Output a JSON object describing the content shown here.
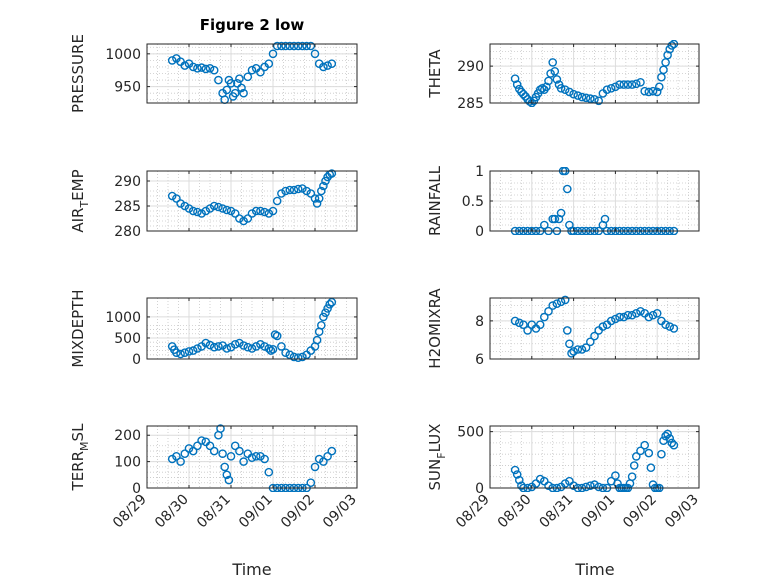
{
  "figure": {
    "title": "Figure 2 low",
    "xlabel": "Time",
    "marker_color": "#0072BD"
  },
  "chart_data": [
    {
      "type": "scatter",
      "ylabel": "PRESSURE",
      "ylabel_sub": "",
      "ylabel_tail": "",
      "ylim": [
        925,
        1015
      ],
      "yticks": [
        950,
        1000
      ],
      "xlim": [
        0,
        5
      ],
      "xticks": [
        0,
        1,
        2,
        3,
        4,
        5
      ],
      "xticklabels": [
        "08/29",
        "08/30",
        "08/31",
        "09/01",
        "09/02",
        "09/03"
      ],
      "show_xticklabels": false,
      "x": [
        0.6,
        0.7,
        0.8,
        0.9,
        1.0,
        1.1,
        1.2,
        1.3,
        1.4,
        1.5,
        1.6,
        1.7,
        1.8,
        1.85,
        1.9,
        1.95,
        2.0,
        2.05,
        2.1,
        2.15,
        2.2,
        2.25,
        2.3,
        2.4,
        2.5,
        2.6,
        2.7,
        2.8,
        2.9,
        3.0,
        3.1,
        3.2,
        3.3,
        3.4,
        3.5,
        3.6,
        3.7,
        3.8,
        3.9,
        4.0,
        4.1,
        4.2,
        4.3,
        4.4
      ],
      "y": [
        990,
        993,
        988,
        982,
        985,
        980,
        978,
        979,
        977,
        978,
        975,
        960,
        940,
        930,
        945,
        960,
        955,
        935,
        940,
        955,
        962,
        948,
        940,
        965,
        975,
        978,
        972,
        980,
        985,
        1000,
        1012,
        1012,
        1012,
        1012,
        1012,
        1012,
        1012,
        1012,
        1012,
        1000,
        985,
        980,
        982,
        985
      ]
    },
    {
      "type": "scatter",
      "ylabel": "THETA",
      "ylabel_sub": "",
      "ylabel_tail": "",
      "ylim": [
        285,
        293
      ],
      "yticks": [
        285,
        290
      ],
      "xlim": [
        0,
        5
      ],
      "xticks": [
        0,
        1,
        2,
        3,
        4,
        5
      ],
      "xticklabels": [
        "08/29",
        "08/30",
        "08/31",
        "09/01",
        "09/02",
        "09/03"
      ],
      "show_xticklabels": false,
      "x": [
        0.6,
        0.65,
        0.7,
        0.75,
        0.8,
        0.85,
        0.9,
        0.95,
        1.0,
        1.05,
        1.1,
        1.15,
        1.2,
        1.25,
        1.3,
        1.35,
        1.4,
        1.45,
        1.5,
        1.55,
        1.6,
        1.65,
        1.7,
        1.8,
        1.9,
        2.0,
        2.1,
        2.2,
        2.3,
        2.4,
        2.5,
        2.6,
        2.7,
        2.8,
        2.9,
        3.0,
        3.1,
        3.2,
        3.3,
        3.4,
        3.5,
        3.6,
        3.7,
        3.8,
        3.9,
        4.0,
        4.05,
        4.1,
        4.15,
        4.2,
        4.25,
        4.3,
        4.35,
        4.4
      ],
      "y": [
        288.3,
        287.5,
        286.9,
        286.5,
        286.2,
        285.9,
        285.5,
        285.2,
        285.0,
        285.3,
        285.8,
        286.3,
        286.8,
        287.0,
        286.8,
        287.2,
        288.0,
        289.0,
        290.5,
        289.3,
        288.2,
        287.5,
        287.0,
        286.8,
        286.5,
        286.2,
        286.0,
        285.8,
        285.7,
        285.6,
        285.5,
        285.3,
        286.3,
        286.8,
        287.0,
        287.2,
        287.5,
        287.5,
        287.5,
        287.5,
        287.6,
        287.8,
        286.6,
        286.5,
        286.6,
        286.5,
        287.2,
        288.5,
        289.5,
        290.5,
        291.5,
        292.3,
        292.8,
        293.0
      ]
    },
    {
      "type": "scatter",
      "ylabel": "AIR",
      "ylabel_sub": "T",
      "ylabel_tail": "EMP",
      "ylim": [
        280,
        292
      ],
      "yticks": [
        280,
        285,
        290
      ],
      "xlim": [
        0,
        5
      ],
      "xticks": [
        0,
        1,
        2,
        3,
        4,
        5
      ],
      "xticklabels": [
        "08/29",
        "08/30",
        "08/31",
        "09/01",
        "09/02",
        "09/03"
      ],
      "show_xticklabels": false,
      "x": [
        0.6,
        0.7,
        0.8,
        0.9,
        1.0,
        1.1,
        1.2,
        1.3,
        1.4,
        1.5,
        1.6,
        1.7,
        1.8,
        1.9,
        2.0,
        2.1,
        2.2,
        2.3,
        2.4,
        2.5,
        2.6,
        2.7,
        2.8,
        2.9,
        3.0,
        3.1,
        3.2,
        3.3,
        3.4,
        3.5,
        3.6,
        3.7,
        3.8,
        3.9,
        4.0,
        4.05,
        4.1,
        4.15,
        4.2,
        4.25,
        4.3,
        4.35,
        4.4
      ],
      "y": [
        287.0,
        286.5,
        285.5,
        285.0,
        284.5,
        284.0,
        283.8,
        283.5,
        284.0,
        284.5,
        285.0,
        284.8,
        284.5,
        284.2,
        284.0,
        283.5,
        282.5,
        282.0,
        282.5,
        283.5,
        284.0,
        284.0,
        283.8,
        283.5,
        284.0,
        286.0,
        287.5,
        288.0,
        288.2,
        288.2,
        288.4,
        288.5,
        288.0,
        287.5,
        286.5,
        285.5,
        286.5,
        288.0,
        289.0,
        290.0,
        290.8,
        291.3,
        291.5
      ]
    },
    {
      "type": "scatter",
      "ylabel": "RAINFALL",
      "ylabel_sub": "",
      "ylabel_tail": "",
      "ylim": [
        0,
        1
      ],
      "yticks": [
        0,
        0.5,
        1
      ],
      "xlim": [
        0,
        5
      ],
      "xticks": [
        0,
        1,
        2,
        3,
        4,
        5
      ],
      "xticklabels": [
        "08/29",
        "08/30",
        "08/31",
        "09/01",
        "09/02",
        "09/03"
      ],
      "show_xticklabels": false,
      "x": [
        0.6,
        0.7,
        0.8,
        0.9,
        1.0,
        1.1,
        1.2,
        1.3,
        1.4,
        1.5,
        1.55,
        1.6,
        1.65,
        1.7,
        1.75,
        1.8,
        1.85,
        1.9,
        1.95,
        2.0,
        2.1,
        2.2,
        2.3,
        2.4,
        2.5,
        2.6,
        2.7,
        2.75,
        2.8,
        2.9,
        3.0,
        3.1,
        3.2,
        3.3,
        3.4,
        3.5,
        3.6,
        3.7,
        3.8,
        3.9,
        4.0,
        4.1,
        4.2,
        4.3,
        4.4
      ],
      "y": [
        0,
        0,
        0,
        0,
        0,
        0,
        0,
        0.1,
        0,
        0.2,
        0.2,
        0,
        0.2,
        0.3,
        1.0,
        1.0,
        0.7,
        0.1,
        0,
        0,
        0,
        0,
        0,
        0,
        0,
        0,
        0.1,
        0.2,
        0,
        0,
        0,
        0,
        0,
        0,
        0,
        0,
        0,
        0,
        0,
        0,
        0,
        0,
        0,
        0,
        0
      ]
    },
    {
      "type": "scatter",
      "ylabel": "MIXDEPTH",
      "ylabel_sub": "",
      "ylabel_tail": "",
      "ylim": [
        0,
        1450
      ],
      "yticks": [
        0,
        500,
        1000
      ],
      "xlim": [
        0,
        5
      ],
      "xticks": [
        0,
        1,
        2,
        3,
        4,
        5
      ],
      "xticklabels": [
        "08/29",
        "08/30",
        "08/31",
        "09/01",
        "09/02",
        "09/03"
      ],
      "show_xticklabels": false,
      "x": [
        0.6,
        0.65,
        0.7,
        0.8,
        0.9,
        1.0,
        1.1,
        1.2,
        1.3,
        1.4,
        1.5,
        1.6,
        1.7,
        1.8,
        1.9,
        2.0,
        2.1,
        2.2,
        2.3,
        2.4,
        2.5,
        2.6,
        2.7,
        2.8,
        2.9,
        2.95,
        3.0,
        3.05,
        3.1,
        3.2,
        3.3,
        3.4,
        3.5,
        3.6,
        3.7,
        3.8,
        3.9,
        4.0,
        4.05,
        4.1,
        4.15,
        4.2,
        4.25,
        4.3,
        4.35,
        4.4
      ],
      "y": [
        300,
        220,
        150,
        120,
        150,
        180,
        200,
        250,
        300,
        380,
        330,
        280,
        300,
        320,
        250,
        280,
        350,
        380,
        320,
        280,
        250,
        300,
        350,
        300,
        250,
        200,
        230,
        580,
        550,
        300,
        150,
        100,
        50,
        30,
        50,
        100,
        200,
        300,
        450,
        650,
        800,
        1000,
        1100,
        1200,
        1300,
        1350
      ]
    },
    {
      "type": "scatter",
      "ylabel": "H2OMIXRA",
      "ylabel_sub": "",
      "ylabel_tail": "",
      "ylim": [
        6,
        9.2
      ],
      "yticks": [
        6,
        8
      ],
      "xlim": [
        0,
        5
      ],
      "xticks": [
        0,
        1,
        2,
        3,
        4,
        5
      ],
      "xticklabels": [
        "08/29",
        "08/30",
        "08/31",
        "09/01",
        "09/02",
        "09/03"
      ],
      "show_xticklabels": false,
      "x": [
        0.6,
        0.7,
        0.8,
        0.9,
        1.0,
        1.1,
        1.2,
        1.3,
        1.4,
        1.5,
        1.6,
        1.7,
        1.8,
        1.85,
        1.9,
        1.95,
        2.0,
        2.1,
        2.2,
        2.3,
        2.4,
        2.5,
        2.6,
        2.7,
        2.8,
        2.9,
        3.0,
        3.1,
        3.2,
        3.3,
        3.4,
        3.5,
        3.6,
        3.7,
        3.8,
        3.9,
        4.0,
        4.1,
        4.2,
        4.3,
        4.4
      ],
      "y": [
        8.0,
        7.9,
        7.8,
        7.5,
        7.8,
        7.6,
        7.8,
        8.2,
        8.5,
        8.8,
        8.9,
        9.0,
        9.1,
        7.5,
        6.8,
        6.3,
        6.4,
        6.5,
        6.5,
        6.6,
        6.9,
        7.2,
        7.5,
        7.7,
        7.8,
        8.0,
        8.1,
        8.2,
        8.2,
        8.3,
        8.3,
        8.4,
        8.5,
        8.4,
        8.2,
        8.3,
        8.4,
        8.0,
        7.8,
        7.7,
        7.6
      ]
    },
    {
      "type": "scatter",
      "ylabel": "TERR",
      "ylabel_sub": "M",
      "ylabel_tail": "SL",
      "ylim": [
        0,
        235
      ],
      "yticks": [
        0,
        100,
        200
      ],
      "xlim": [
        0,
        5
      ],
      "xticks": [
        0,
        1,
        2,
        3,
        4,
        5
      ],
      "xticklabels": [
        "08/29",
        "08/30",
        "08/31",
        "09/01",
        "09/02",
        "09/03"
      ],
      "show_xticklabels": true,
      "x": [
        0.6,
        0.7,
        0.8,
        0.9,
        1.0,
        1.1,
        1.2,
        1.3,
        1.4,
        1.5,
        1.6,
        1.7,
        1.75,
        1.8,
        1.85,
        1.9,
        1.95,
        2.0,
        2.1,
        2.2,
        2.3,
        2.4,
        2.5,
        2.6,
        2.7,
        2.8,
        2.9,
        3.0,
        3.1,
        3.2,
        3.3,
        3.4,
        3.5,
        3.6,
        3.7,
        3.8,
        3.9,
        4.0,
        4.1,
        4.2,
        4.3,
        4.4
      ],
      "y": [
        110,
        120,
        100,
        130,
        150,
        140,
        160,
        180,
        175,
        160,
        140,
        200,
        225,
        130,
        80,
        50,
        30,
        120,
        160,
        140,
        100,
        130,
        115,
        120,
        120,
        110,
        60,
        0,
        0,
        0,
        0,
        0,
        0,
        0,
        0,
        0,
        20,
        80,
        110,
        100,
        120,
        140
      ]
    },
    {
      "type": "scatter",
      "ylabel": "SUN",
      "ylabel_sub": "F",
      "ylabel_tail": "LUX",
      "ylim": [
        0,
        550
      ],
      "yticks": [
        0,
        500
      ],
      "xlim": [
        0,
        5
      ],
      "xticks": [
        0,
        1,
        2,
        3,
        4,
        5
      ],
      "xticklabels": [
        "08/29",
        "08/30",
        "08/31",
        "09/01",
        "09/02",
        "09/03"
      ],
      "show_xticklabels": true,
      "x": [
        0.6,
        0.65,
        0.7,
        0.75,
        0.8,
        0.9,
        1.0,
        1.1,
        1.2,
        1.3,
        1.4,
        1.5,
        1.6,
        1.7,
        1.8,
        1.9,
        2.0,
        2.1,
        2.2,
        2.3,
        2.4,
        2.5,
        2.6,
        2.7,
        2.8,
        2.9,
        3.0,
        3.05,
        3.1,
        3.15,
        3.2,
        3.25,
        3.3,
        3.35,
        3.4,
        3.45,
        3.5,
        3.6,
        3.7,
        3.8,
        3.85,
        3.9,
        3.95,
        4.0,
        4.05,
        4.1,
        4.15,
        4.2,
        4.25,
        4.3,
        4.35,
        4.4
      ],
      "y": [
        160,
        120,
        70,
        20,
        0,
        0,
        10,
        40,
        80,
        60,
        20,
        0,
        0,
        10,
        40,
        60,
        20,
        0,
        0,
        10,
        20,
        30,
        10,
        0,
        0,
        60,
        110,
        40,
        0,
        0,
        0,
        0,
        0,
        40,
        100,
        200,
        280,
        330,
        380,
        310,
        180,
        30,
        0,
        0,
        0,
        300,
        420,
        460,
        480,
        440,
        400,
        380
      ]
    }
  ]
}
